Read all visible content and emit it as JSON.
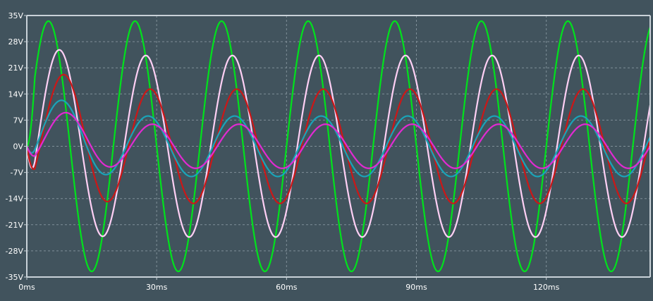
{
  "colors": {
    "background": "#41535d",
    "axis": "#c9d2d8",
    "grid": "#7f8f98",
    "tick_text": "#ffffff"
  },
  "chart_data": {
    "type": "line",
    "title": "",
    "xlabel": "",
    "ylabel": "",
    "xlim": [
      0,
      144
    ],
    "ylim": [
      -35,
      35
    ],
    "grid": true,
    "x_ticks": [
      0,
      30,
      60,
      90,
      120
    ],
    "x_tick_labels": [
      "0ms",
      "30ms",
      "60ms",
      "90ms",
      "120ms"
    ],
    "y_ticks": [
      35,
      28,
      21,
      14,
      7,
      0,
      -7,
      -14,
      -21,
      -28,
      -35
    ],
    "y_tick_labels": [
      "35V",
      "28V",
      "21V",
      "14V",
      "7V",
      "0V",
      "-7V",
      "-14V",
      "-21V",
      "-28V",
      "-35V"
    ],
    "x_unit": "ms",
    "y_unit": "V",
    "series": [
      {
        "color": "#00e21c",
        "period_ms": 20,
        "amplitude_V": 33.5,
        "first_peak_ms": 5,
        "first_peak_V": 33.5
      },
      {
        "color": "#ffd0f5",
        "period_ms": 20,
        "amplitude_V": 24.3,
        "first_peak_ms": 7.5,
        "first_peak_V": 25.8
      },
      {
        "color": "#cc1717",
        "period_ms": 20,
        "amplitude_V": 15.3,
        "first_peak_ms": 8.5,
        "first_peak_V": 19.2
      },
      {
        "color": "#1aa4b8",
        "period_ms": 20,
        "amplitude_V": 8.1,
        "first_peak_ms": 8.0,
        "first_peak_V": 12.3
      },
      {
        "color": "#e22ad2",
        "period_ms": 20,
        "amplitude_V": 5.9,
        "first_peak_ms": 9.0,
        "first_peak_V": 9.0
      }
    ]
  }
}
